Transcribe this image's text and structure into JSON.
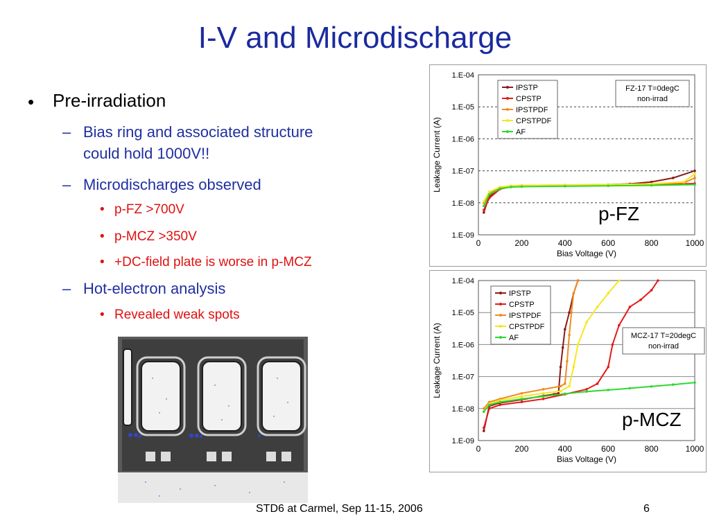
{
  "slide": {
    "title": "I-V and Microdischarge",
    "footer": "STD6 at Carmel, Sep 11-15, 2006",
    "page_number": "6"
  },
  "bullets": {
    "pre_irradiation": "Pre-irradiation",
    "bias_ring": "Bias ring and associated structure",
    "bias_ring_2": "could hold 1000V!!",
    "microdischarges": "Microdischarges observed",
    "pfz": "p-FZ  >700V",
    "pmcz": "p-MCZ >350V",
    "dc_field": "+DC-field plate is worse in p-MCZ",
    "hot_electron": "Hot-electron analysis",
    "weak_spots": "Revealed weak spots"
  },
  "labels": {
    "pfz_caption": "p-FZ",
    "pmcz_caption": "p-MCZ"
  },
  "colors": {
    "title": "#1a2a9e",
    "level2": "#1f2fa0",
    "level3": "#e01010"
  },
  "chart_data": [
    {
      "type": "line",
      "title": "FZ-17 T=0degC non-irrad",
      "annotation": [
        "FZ-17 T=0degC",
        "non-irrad"
      ],
      "xlabel": "Bias Voltage (V)",
      "ylabel": "Leakage Current (A)",
      "xlim": [
        0,
        1000
      ],
      "ylim": [
        1e-09,
        0.0001
      ],
      "yscale": "log",
      "xticks": [
        "0",
        "200",
        "400",
        "600",
        "800",
        "1000"
      ],
      "yticks": [
        "1.E-09",
        "1.E-08",
        "1.E-07",
        "1.E-06",
        "1.E-05",
        "1.E-04"
      ],
      "grid": "horizontal-dashed",
      "legend_position": "top-left",
      "series": [
        {
          "name": "IPSTP",
          "color": "#8b1a1a",
          "x": [
            25,
            50,
            100,
            150,
            200,
            400,
            600,
            700,
            800,
            900,
            1000
          ],
          "y": [
            5e-09,
            1.6e-08,
            2.8e-08,
            3.3e-08,
            3.4e-08,
            3.5e-08,
            3.7e-08,
            3.9e-08,
            4.5e-08,
            6e-08,
            1e-07
          ]
        },
        {
          "name": "CPSTP",
          "color": "#e31a1a",
          "x": [
            25,
            50,
            100,
            150,
            200,
            400,
            600,
            800,
            1000
          ],
          "y": [
            6e-09,
            1.4e-08,
            2.7e-08,
            3.2e-08,
            3.3e-08,
            3.4e-08,
            3.5e-08,
            3.7e-08,
            4e-08
          ]
        },
        {
          "name": "IPSTPDF",
          "color": "#f08c1e",
          "x": [
            25,
            50,
            100,
            150,
            200,
            400,
            600,
            800,
            950,
            1000
          ],
          "y": [
            1e-08,
            2e-08,
            3e-08,
            3.4e-08,
            3.5e-08,
            3.6e-08,
            3.7e-08,
            3.9e-08,
            4.2e-08,
            6e-08
          ]
        },
        {
          "name": "CPSTPDF",
          "color": "#f5e61e",
          "x": [
            25,
            50,
            100,
            150,
            200,
            400,
            600,
            800,
            950,
            1000
          ],
          "y": [
            1.1e-08,
            2.2e-08,
            3.1e-08,
            3.4e-08,
            3.5e-08,
            3.6e-08,
            3.7e-08,
            3.9e-08,
            4.5e-08,
            8e-08
          ]
        },
        {
          "name": "AF",
          "color": "#2ed82e",
          "x": [
            25,
            50,
            100,
            150,
            200,
            400,
            600,
            800,
            1000
          ],
          "y": [
            8e-09,
            1.8e-08,
            2.8e-08,
            3.1e-08,
            3.2e-08,
            3.3e-08,
            3.4e-08,
            3.5e-08,
            3.7e-08
          ]
        }
      ]
    },
    {
      "type": "line",
      "title": "MCZ-17 T=20degC non-irrad",
      "annotation": [
        "MCZ-17 T=20degC",
        "non-irrad"
      ],
      "xlabel": "Bias Voltage (V)",
      "ylabel": "Leakage Current (A)",
      "xlim": [
        0,
        1000
      ],
      "ylim": [
        1e-09,
        0.0001
      ],
      "yscale": "log",
      "xticks": [
        "0",
        "200",
        "400",
        "600",
        "800",
        "1000"
      ],
      "yticks": [
        "1.E-09",
        "1.E-08",
        "1.E-07",
        "1.E-06",
        "1.E-05",
        "1.E-04"
      ],
      "grid": "horizontal",
      "legend_position": "top-left",
      "series": [
        {
          "name": "IPSTP",
          "color": "#8b1a1a",
          "x": [
            25,
            50,
            100,
            200,
            300,
            350,
            370,
            380,
            390,
            400,
            420,
            440,
            460
          ],
          "y": [
            2e-09,
            1.2e-08,
            1.5e-08,
            1.9e-08,
            2.5e-08,
            2.8e-08,
            3e-08,
            2e-07,
            8e-07,
            3e-06,
            1e-05,
            4e-05,
            0.0001
          ]
        },
        {
          "name": "CPSTP",
          "color": "#e31a1a",
          "x": [
            25,
            50,
            100,
            200,
            300,
            400,
            500,
            550,
            600,
            620,
            650,
            700,
            750,
            800,
            830
          ],
          "y": [
            2.5e-09,
            1e-08,
            1.3e-08,
            1.6e-08,
            2e-08,
            2.8e-08,
            4e-08,
            6e-08,
            2e-07,
            1e-06,
            4e-06,
            1.5e-05,
            2.5e-05,
            5e-05,
            0.0001
          ]
        },
        {
          "name": "IPSTPDF",
          "color": "#f08c1e",
          "x": [
            25,
            50,
            100,
            200,
            300,
            380,
            400,
            410,
            420,
            430,
            440,
            460
          ],
          "y": [
            1e-08,
            1.6e-08,
            2e-08,
            3e-08,
            4e-08,
            5e-08,
            6e-08,
            3e-07,
            2e-06,
            1e-05,
            4e-05,
            0.0001
          ]
        },
        {
          "name": "CPSTPDF",
          "color": "#f5e61e",
          "x": [
            25,
            50,
            100,
            200,
            300,
            380,
            420,
            440,
            460,
            500,
            550,
            600,
            650
          ],
          "y": [
            8e-09,
            1.4e-08,
            1.8e-08,
            2.4e-08,
            3e-08,
            3.5e-08,
            5e-08,
            2e-07,
            1e-06,
            5e-06,
            1.5e-05,
            4e-05,
            0.0001
          ]
        },
        {
          "name": "AF",
          "color": "#2ed82e",
          "x": [
            25,
            50,
            100,
            200,
            300,
            400,
            500,
            600,
            700,
            800,
            900,
            1000
          ],
          "y": [
            8e-09,
            1.3e-08,
            1.6e-08,
            2e-08,
            2.4e-08,
            2.9e-08,
            3.4e-08,
            3.8e-08,
            4.3e-08,
            4.9e-08,
            5.6e-08,
            6.5e-08
          ]
        }
      ]
    }
  ]
}
